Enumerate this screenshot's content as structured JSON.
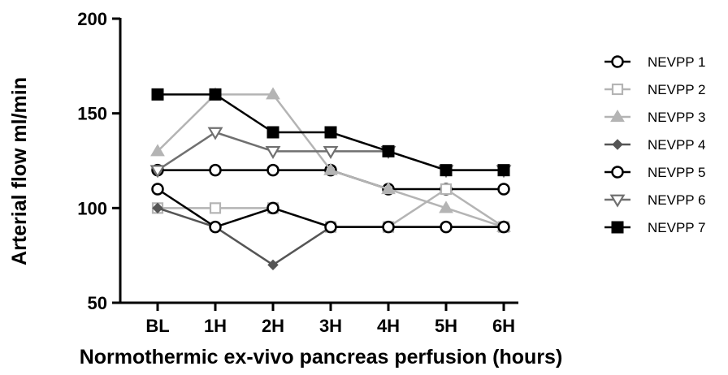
{
  "chart_data": {
    "type": "line",
    "xlabel": "Normothermic ex-vivo pancreas perfusion (hours)",
    "ylabel": "Arterial flow ml/min",
    "categories": [
      "BL",
      "1H",
      "2H",
      "3H",
      "4H",
      "5H",
      "6H"
    ],
    "ylim": [
      50,
      200
    ],
    "yticks": [
      50,
      100,
      150,
      200
    ],
    "grid": false,
    "legend_position": "right",
    "series": [
      {
        "name": "NEVPP 1",
        "marker": "circle-open",
        "color": "#000000",
        "values": [
          120,
          120,
          120,
          120,
          110,
          110,
          110
        ]
      },
      {
        "name": "NEVPP  2",
        "marker": "square-open",
        "color": "#b4b4b4",
        "values": [
          100,
          100,
          100,
          90,
          90,
          110,
          90
        ]
      },
      {
        "name": "NEVPP  3",
        "marker": "triangle-filled",
        "color": "#b4b4b4",
        "values": [
          130,
          160,
          160,
          120,
          110,
          100,
          90
        ]
      },
      {
        "name": "NEVPP  4",
        "marker": "diamond-filled",
        "color": "#555555",
        "values": [
          100,
          90,
          70,
          90,
          90,
          90,
          90
        ]
      },
      {
        "name": "NEVPP  5",
        "marker": "circle-open",
        "color": "#000000",
        "values": [
          110,
          90,
          100,
          90,
          90,
          90,
          90
        ]
      },
      {
        "name": "NEVPP  6",
        "marker": "triangle-down-open",
        "color": "#707070",
        "values": [
          120,
          140,
          130,
          130,
          130,
          120,
          120
        ]
      },
      {
        "name": "NEVPP 7",
        "marker": "square-filled",
        "color": "#000000",
        "values": [
          160,
          160,
          140,
          140,
          130,
          120,
          120
        ]
      }
    ]
  }
}
